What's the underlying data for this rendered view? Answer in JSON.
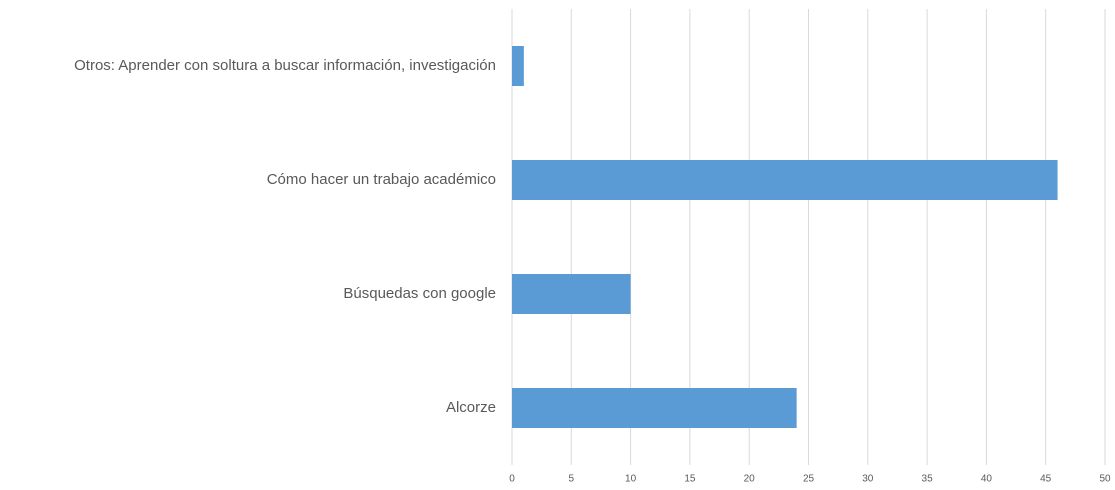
{
  "chart_data": {
    "type": "hbar",
    "categories": [
      "Otros: Aprender con soltura a buscar información, investigación",
      "Cómo hacer un trabajo académico",
      "Búsquedas con google",
      "Alcorze"
    ],
    "values": [
      1,
      46,
      10,
      24
    ],
    "color": "#5b9bd5",
    "xlim": [
      0,
      50
    ],
    "xticks": [
      0,
      5,
      10,
      15,
      20,
      25,
      30,
      35,
      40,
      45,
      50
    ],
    "grid": true
  }
}
